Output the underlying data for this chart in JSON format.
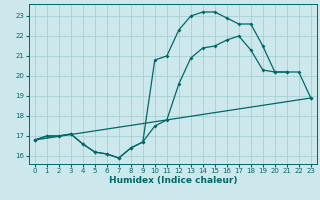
{
  "xlabel": "Humidex (Indice chaleur)",
  "bg_color": "#cde8ec",
  "grid_color": "#a8d0d4",
  "line_color": "#006868",
  "xlim": [
    -0.5,
    23.5
  ],
  "ylim": [
    15.6,
    23.6
  ],
  "yticks": [
    16,
    17,
    18,
    19,
    20,
    21,
    22,
    23
  ],
  "xticks": [
    0,
    1,
    2,
    3,
    4,
    5,
    6,
    7,
    8,
    9,
    10,
    11,
    12,
    13,
    14,
    15,
    16,
    17,
    18,
    19,
    20,
    21,
    22,
    23
  ],
  "line1_x": [
    0,
    1,
    2,
    3,
    4,
    5,
    6,
    7,
    8,
    9,
    10,
    11,
    12,
    13,
    14,
    15,
    16,
    17,
    18,
    19,
    20,
    21,
    22,
    23
  ],
  "line1_y": [
    16.8,
    17.0,
    17.0,
    17.1,
    16.6,
    16.2,
    16.1,
    15.9,
    16.4,
    16.7,
    17.5,
    17.8,
    19.6,
    20.9,
    21.4,
    21.5,
    21.8,
    22.0,
    21.3,
    20.3,
    20.2,
    20.2,
    null,
    null
  ],
  "line2_x": [
    0,
    1,
    2,
    3,
    4,
    5,
    6,
    7,
    8,
    9,
    10,
    11,
    12,
    13,
    14,
    15,
    16,
    17,
    18,
    19,
    20,
    21,
    22,
    23
  ],
  "line2_y": [
    16.8,
    17.0,
    17.0,
    17.1,
    16.6,
    16.2,
    16.1,
    15.9,
    16.4,
    16.7,
    20.8,
    21.0,
    22.3,
    23.0,
    23.2,
    23.2,
    22.9,
    22.6,
    22.6,
    21.5,
    20.2,
    20.2,
    20.2,
    18.9
  ],
  "line3_x": [
    0,
    23
  ],
  "line3_y": [
    16.8,
    18.9
  ]
}
